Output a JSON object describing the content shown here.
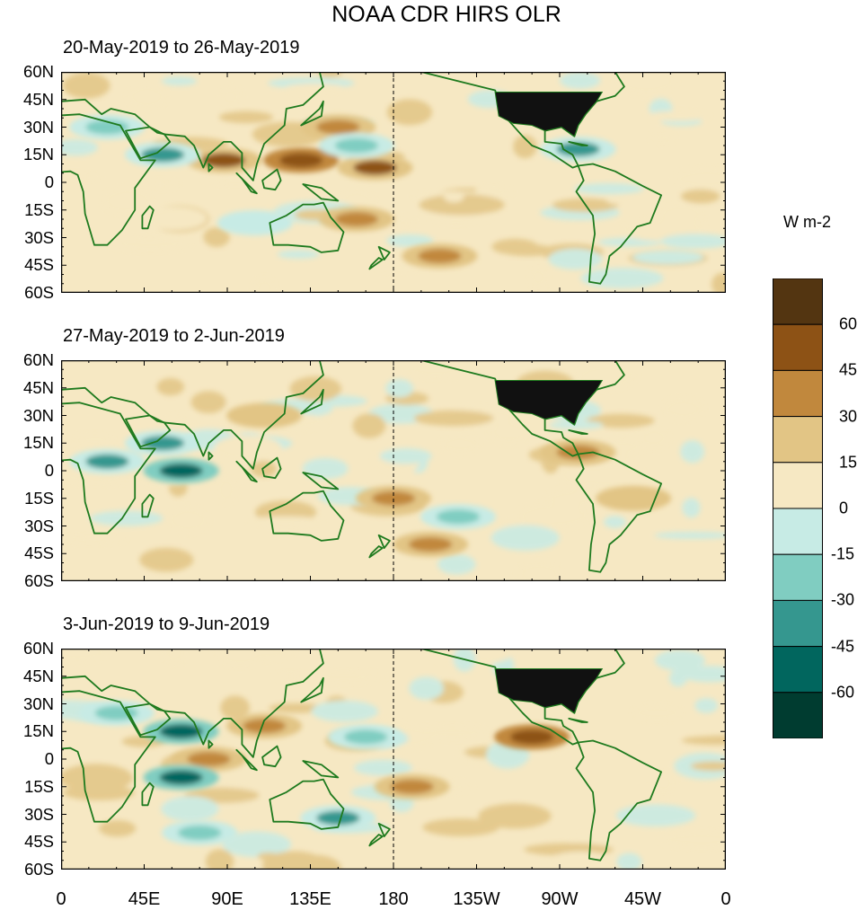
{
  "chart_data": {
    "type": "heatmap",
    "title": "NOAA CDR HIRS OLR",
    "variable": "Outgoing Longwave Radiation anomaly",
    "units": "W m-2",
    "x_ticks": [
      "0",
      "45E",
      "90E",
      "135E",
      "180",
      "135W",
      "90W",
      "45W",
      "0"
    ],
    "y_ticks": [
      "60N",
      "45N",
      "30N",
      "15N",
      "0",
      "15S",
      "30S",
      "45S",
      "60S"
    ],
    "colorbar": {
      "levels": [
        {
          "label": "60",
          "color": "#533511"
        },
        {
          "label": "45",
          "color": "#8d5215"
        },
        {
          "label": "30",
          "color": "#c1883d"
        },
        {
          "label": "15",
          "color": "#e2c585"
        },
        {
          "label": "0",
          "color": "#f6e8c3"
        },
        {
          "label": "-15",
          "color": "#c7ebe5"
        },
        {
          "label": "-30",
          "color": "#80cdc1"
        },
        {
          "label": "-45",
          "color": "#35978f"
        },
        {
          "label": "-60",
          "color": "#01665e"
        },
        {
          "label": "",
          "color": "#003c30"
        }
      ],
      "tick_labels": [
        "60",
        "45",
        "30",
        "15",
        "0",
        "-15",
        "-30",
        "-45",
        "-60"
      ]
    },
    "panels": [
      {
        "period": "20-May-2019 to 26-May-2019",
        "anomalies": [
          {
            "lon": 130,
            "lat": 12,
            "value": 45
          },
          {
            "lon": 88,
            "lat": 12,
            "value": 40
          },
          {
            "lon": 170,
            "lat": 8,
            "value": 40
          },
          {
            "lon": 160,
            "lat": -20,
            "value": 30
          },
          {
            "lon": 205,
            "lat": -40,
            "value": 25
          },
          {
            "lon": 150,
            "lat": 30,
            "value": 30
          },
          {
            "lon": 55,
            "lat": 15,
            "value": -45
          },
          {
            "lon": 25,
            "lat": 30,
            "value": -30
          },
          {
            "lon": 160,
            "lat": 20,
            "value": -30
          },
          {
            "lon": 105,
            "lat": -22,
            "value": -20
          },
          {
            "lon": 280,
            "lat": 18,
            "value": -40
          }
        ]
      },
      {
        "period": "27-May-2019 to 2-Jun-2019",
        "anomalies": [
          {
            "lon": 65,
            "lat": 0,
            "value": -60
          },
          {
            "lon": 55,
            "lat": 15,
            "value": -45
          },
          {
            "lon": 25,
            "lat": 5,
            "value": -40
          },
          {
            "lon": 215,
            "lat": -25,
            "value": -30
          },
          {
            "lon": 180,
            "lat": -15,
            "value": 30
          },
          {
            "lon": 200,
            "lat": -40,
            "value": 25
          },
          {
            "lon": 110,
            "lat": 30,
            "value": 20
          },
          {
            "lon": 310,
            "lat": -15,
            "value": 20
          },
          {
            "lon": 280,
            "lat": 10,
            "value": 30
          }
        ]
      },
      {
        "period": "3-Jun-2019 to 9-Jun-2019",
        "anomalies": [
          {
            "lon": 255,
            "lat": 12,
            "value": 45
          },
          {
            "lon": 80,
            "lat": 0,
            "value": 35
          },
          {
            "lon": 110,
            "lat": 18,
            "value": 30
          },
          {
            "lon": 190,
            "lat": -15,
            "value": 25
          },
          {
            "lon": 65,
            "lat": 15,
            "value": -55
          },
          {
            "lon": 65,
            "lat": -10,
            "value": -60
          },
          {
            "lon": 75,
            "lat": -40,
            "value": -30
          },
          {
            "lon": 150,
            "lat": -32,
            "value": -40
          },
          {
            "lon": 30,
            "lat": 25,
            "value": -25
          },
          {
            "lon": 165,
            "lat": 12,
            "value": -30
          }
        ]
      }
    ]
  }
}
